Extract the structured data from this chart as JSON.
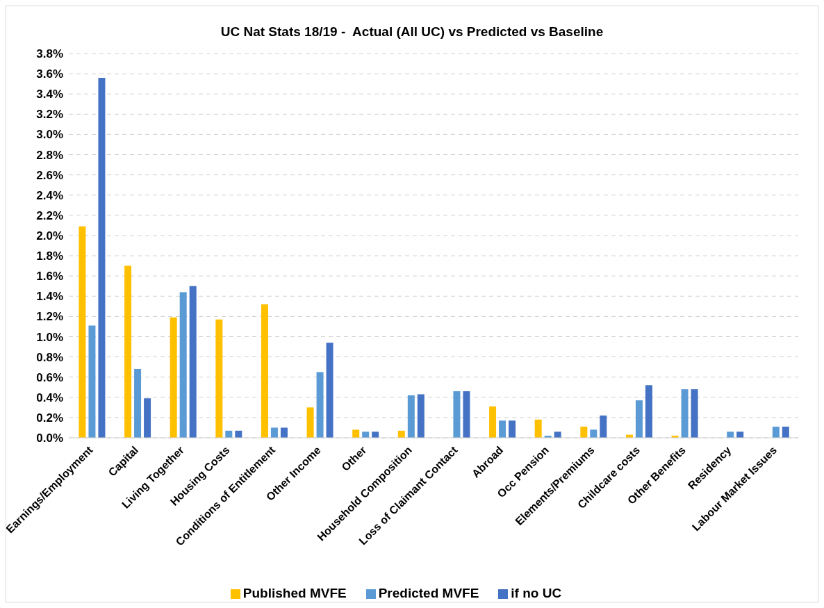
{
  "chart_data": {
    "type": "bar",
    "title": "UC Nat Stats 18/19 -  Actual (All UC) vs Predicted vs Baseline",
    "categories": [
      "Earnings/Employment",
      "Capital",
      "Living Together",
      "Housing Costs",
      "Conditions of Entitlement",
      "Other Income",
      "Other",
      "Household Composition",
      "Loss of Claimant Contact",
      "Abroad",
      "Occ Pension",
      "Elements/Premiums",
      "Childcare costs",
      "Other Benefits",
      "Residency",
      "Labour Market Issues"
    ],
    "series": [
      {
        "name": "Published MVFE",
        "color": "#ffc000",
        "values": [
          2.09,
          1.7,
          1.19,
          1.17,
          1.32,
          0.3,
          0.08,
          0.07,
          null,
          0.31,
          0.18,
          0.11,
          0.03,
          0.02,
          null,
          null
        ]
      },
      {
        "name": "Predicted MVFE",
        "color": "#5b9bd5",
        "values": [
          1.11,
          0.68,
          1.44,
          0.07,
          0.1,
          0.65,
          0.06,
          0.42,
          0.46,
          0.17,
          0.02,
          0.08,
          0.37,
          0.48,
          0.06,
          0.11
        ]
      },
      {
        "name": "if no UC",
        "color": "#4472c4",
        "values": [
          3.56,
          0.39,
          1.5,
          0.07,
          0.1,
          0.94,
          0.06,
          0.43,
          0.46,
          0.17,
          0.06,
          0.22,
          0.52,
          0.48,
          0.06,
          0.11
        ]
      }
    ],
    "ylim": [
      0,
      3.8
    ],
    "yticks": [
      {
        "value": 0,
        "label": "0.0%"
      },
      {
        "value": 0.2,
        "label": "0.2%"
      },
      {
        "value": 0.4,
        "label": "0.4%"
      },
      {
        "value": 0.6,
        "label": "0.6%"
      },
      {
        "value": 0.8,
        "label": "0.8%"
      },
      {
        "value": 1.0,
        "label": "1.0%"
      },
      {
        "value": 1.2,
        "label": "1.2%"
      },
      {
        "value": 1.4,
        "label": "1.4%"
      },
      {
        "value": 1.6,
        "label": "1.6%"
      },
      {
        "value": 1.8,
        "label": "1.8%"
      },
      {
        "value": 2.0,
        "label": "2.0%"
      },
      {
        "value": 2.2,
        "label": "2.2%"
      },
      {
        "value": 2.4,
        "label": "2.4%"
      },
      {
        "value": 2.6,
        "label": "2.6%"
      },
      {
        "value": 2.8,
        "label": "2.8%"
      },
      {
        "value": 3.0,
        "label": "3.0%"
      },
      {
        "value": 3.2,
        "label": "3.2%"
      },
      {
        "value": 3.4,
        "label": "3.4%"
      },
      {
        "value": 3.6,
        "label": "3.6%"
      },
      {
        "value": 3.8,
        "label": "3.8%"
      }
    ],
    "grid": "y",
    "legend": "bottom"
  }
}
